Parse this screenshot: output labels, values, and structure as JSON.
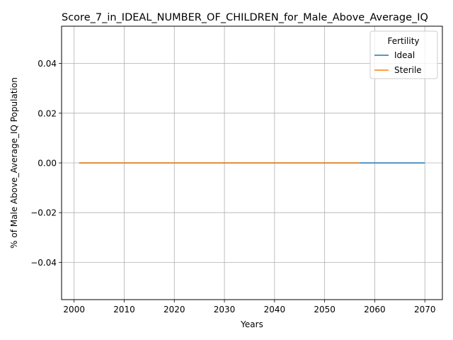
{
  "chart_data": {
    "type": "line",
    "title": "Score_7_in_IDEAL_NUMBER_OF_CHILDREN_for_Male_Above_Average_IQ",
    "xlabel": "Years",
    "ylabel": "% of Male Above_Average_IQ Population",
    "xlim": [
      1997.5,
      2073.5
    ],
    "ylim": [
      -0.055,
      0.055
    ],
    "xticks": [
      2000,
      2010,
      2020,
      2030,
      2040,
      2050,
      2060,
      2070
    ],
    "yticks": [
      -0.04,
      -0.02,
      0.0,
      0.02,
      0.04
    ],
    "ytick_labels": [
      "−0.04",
      "−0.02",
      "0.00",
      "0.02",
      "0.04"
    ],
    "grid": true,
    "legend": {
      "title": "Fertility",
      "position": "top-right"
    },
    "series": [
      {
        "name": "Ideal",
        "color": "#1f77b4",
        "x": [
          2001,
          2070
        ],
        "y": [
          0.0,
          0.0
        ]
      },
      {
        "name": "Sterile",
        "color": "#ff7f0e",
        "x": [
          2001,
          2057
        ],
        "y": [
          0.0,
          0.0
        ]
      }
    ]
  }
}
